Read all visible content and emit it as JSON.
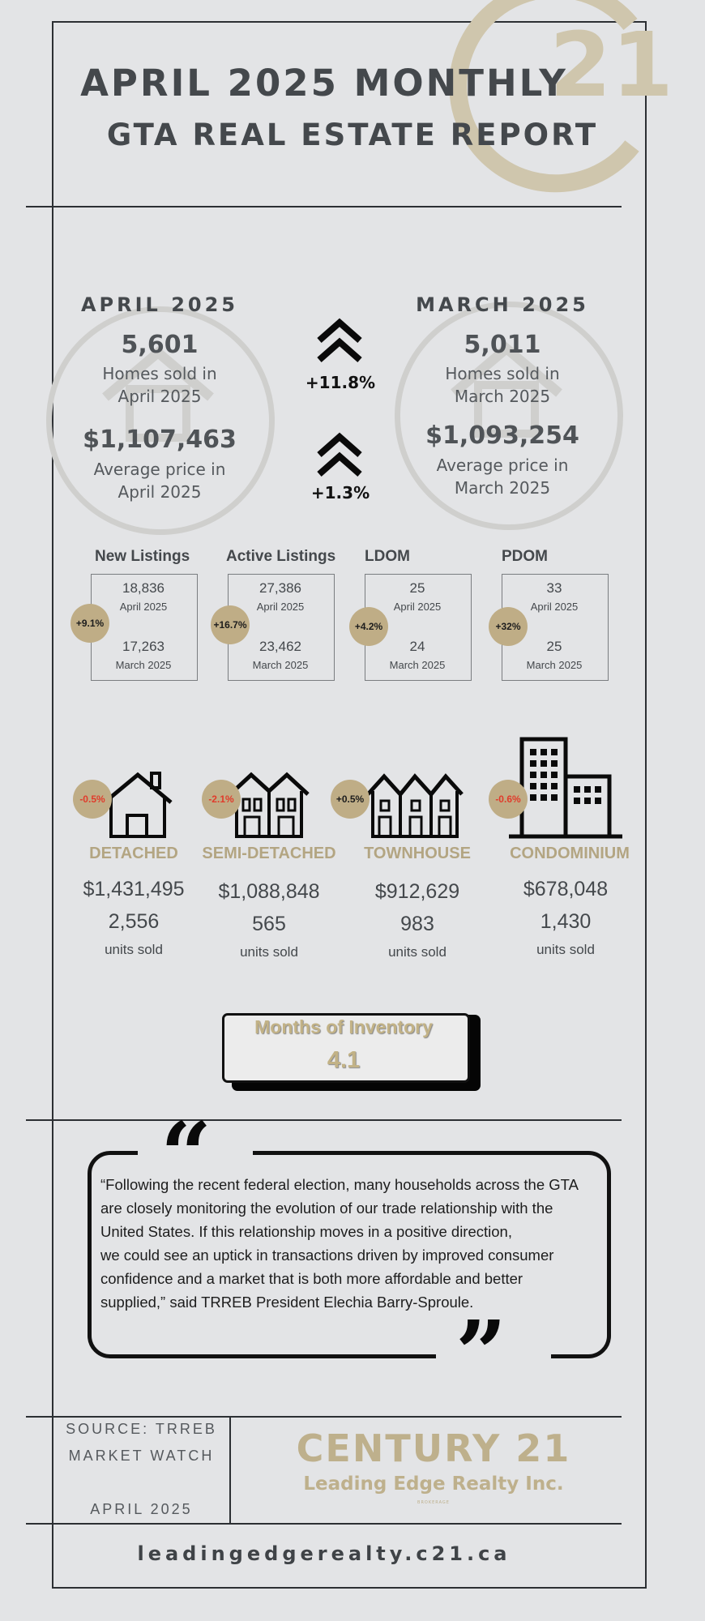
{
  "header": {
    "title_line1": "APRIL 2025 MONTHLY",
    "title_line2": "GTA REAL ESTATE REPORT",
    "logo_mark": "21"
  },
  "comparison": {
    "current": {
      "heading": "APRIL 2025",
      "homes_sold": "5,601",
      "homes_sold_label_1": "Homes sold in",
      "homes_sold_label_2": "April 2025",
      "avg_price": "$1,107,463",
      "avg_price_label_1": "Average price in",
      "avg_price_label_2": "April 2025"
    },
    "previous": {
      "heading": "MARCH 2025",
      "homes_sold": "5,011",
      "homes_sold_label_1": "Homes sold in",
      "homes_sold_label_2": "March 2025",
      "avg_price": "$1,093,254",
      "avg_price_label_1": "Average price in",
      "avg_price_label_2": "March 2025"
    },
    "sales_change": "+11.8%",
    "price_change": "+1.3%"
  },
  "stats": [
    {
      "label": "New Listings",
      "current": "18,836",
      "current_label": "April 2025",
      "previous": "17,263",
      "previous_label": "March 2025",
      "change": "+9.1%"
    },
    {
      "label": "Active Listings",
      "current": "27,386",
      "current_label": "April 2025",
      "previous": "23,462",
      "previous_label": "March 2025",
      "change": "+16.7%"
    },
    {
      "label": "LDOM",
      "current": "25",
      "current_label": "April 2025",
      "previous": "24",
      "previous_label": "March 2025",
      "change": "+4.2%"
    },
    {
      "label": "PDOM",
      "current": "33",
      "current_label": "April 2025",
      "previous": "25",
      "previous_label": "March 2025",
      "change": "+32%"
    }
  ],
  "property_types": [
    {
      "label": "DETACHED",
      "price": "$1,431,495",
      "units": "2,556",
      "units_label": "units sold",
      "change": "-0.5%",
      "change_color": "#e03b2b",
      "icon": "detached-house-icon"
    },
    {
      "label": "SEMI-DETACHED",
      "price": "$1,088,848",
      "units": "565",
      "units_label": "units sold",
      "change": "-2.1%",
      "change_color": "#e03b2b",
      "icon": "semi-detached-icon"
    },
    {
      "label": "TOWNHOUSE",
      "price": "$912,629",
      "units": "983",
      "units_label": "units sold",
      "change": "+0.5%",
      "change_color": "#1d1d1d",
      "icon": "townhouse-icon"
    },
    {
      "label": "CONDOMINIUM",
      "price": "$678,048",
      "units": "1,430",
      "units_label": "units sold",
      "change": "-0.6%",
      "change_color": "#e03b2b",
      "icon": "condo-building-icon"
    }
  ],
  "inventory": {
    "label": "Months of Inventory",
    "value": "4.1"
  },
  "quote": {
    "lines": [
      "“Following the recent federal election, many households across the GTA",
      "are closely monitoring the evolution of our trade relationship with the",
      "United States. If this relationship moves in a positive direction,",
      "we could see an uptick in transactions driven by improved consumer",
      "confidence and a market that is both more affordable and better",
      "supplied,” said TRREB President Elechia Barry-Sproule."
    ],
    "open_mark": "“",
    "close_mark": "”"
  },
  "footer": {
    "source_line1": "SOURCE: TRREB",
    "source_line2": "MARKET WATCH",
    "source_date": "APRIL 2025",
    "brand": "CENTURY 21",
    "brand_sub": "Leading Edge Realty Inc.",
    "brokerage": "BROKERAGE",
    "url": "leadingedgerealty.c21.ca"
  },
  "colors": {
    "gold": "#beb08c",
    "badge": "#bfad86",
    "negative": "#e03b2b",
    "ink": "#44484c"
  }
}
